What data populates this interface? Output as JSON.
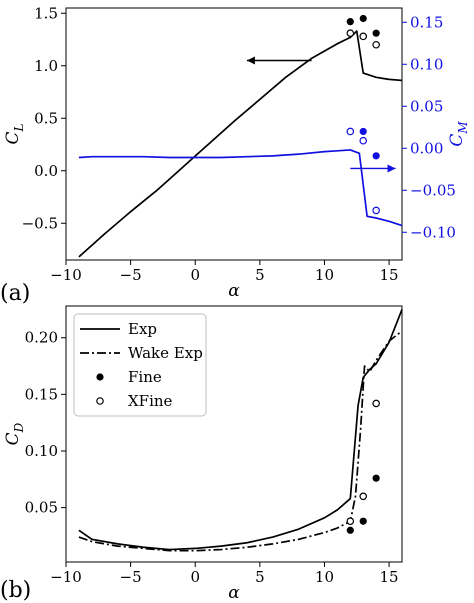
{
  "chart_data": [
    {
      "panel_label": "(a)",
      "type": "line",
      "xlabel": "α",
      "ylabel_left": "C_L",
      "ylabel_right": "C_M",
      "xlim": [
        -10,
        16
      ],
      "ylim_left": [
        -0.85,
        1.55
      ],
      "ylim_right": [
        -0.133,
        0.167
      ],
      "xticks": [
        -10,
        -5,
        0,
        5,
        10,
        15
      ],
      "yticks_left": [
        -0.5,
        0.0,
        0.5,
        1.0,
        1.5
      ],
      "yticks_right": [
        -0.1,
        -0.05,
        0.0,
        0.05,
        0.1,
        0.15
      ],
      "xtick_labels": [
        "−10",
        "−5",
        "0",
        "5",
        "10",
        "15"
      ],
      "ytick_labels_left": [
        "−0.5",
        "0.0",
        "0.5",
        "1.0",
        "1.5"
      ],
      "ytick_labels_right": [
        "−0.10",
        "−0.05",
        "0.00",
        "0.05",
        "0.10",
        "0.15"
      ],
      "colors": {
        "left_axis": "#000000",
        "right_axis": "#1010e0"
      },
      "series": [
        {
          "id": "cl_exp",
          "axis": "left",
          "style": "solid",
          "color": "#000000",
          "x": [
            -9,
            -7,
            -5,
            -3,
            -1,
            0,
            1,
            3,
            5,
            7,
            9,
            11,
            12,
            12.5,
            13,
            14,
            15,
            16
          ],
          "y": [
            -0.82,
            -0.6,
            -0.39,
            -0.19,
            0.03,
            0.14,
            0.25,
            0.47,
            0.68,
            0.89,
            1.07,
            1.21,
            1.27,
            1.33,
            0.93,
            0.89,
            0.87,
            0.86
          ]
        },
        {
          "id": "cm_exp",
          "axis": "right",
          "style": "solid",
          "color": "#1010e0",
          "x": [
            -9,
            -8,
            -6,
            -4,
            -2,
            0,
            2,
            4,
            6,
            8,
            10,
            11,
            12,
            12.7,
            13.3,
            14,
            15,
            16
          ],
          "y": [
            -0.011,
            -0.01,
            -0.01,
            -0.01,
            -0.011,
            -0.011,
            -0.011,
            -0.01,
            -0.009,
            -0.007,
            -0.004,
            -0.003,
            -0.002,
            -0.006,
            -0.081,
            -0.083,
            -0.087,
            -0.092
          ]
        },
        {
          "id": "cl_fine",
          "axis": "left",
          "marker": "filled",
          "color": "#000000",
          "x": [
            12,
            13,
            14
          ],
          "y": [
            1.42,
            1.45,
            1.31
          ]
        },
        {
          "id": "cl_xfine",
          "axis": "left",
          "marker": "open",
          "color": "#000000",
          "x": [
            12,
            13,
            14
          ],
          "y": [
            1.31,
            1.28,
            1.2
          ]
        },
        {
          "id": "cm_fine",
          "axis": "right",
          "marker": "filled",
          "color": "#1010e0",
          "x": [
            12,
            13,
            14
          ],
          "y": [
            0.02,
            0.02,
            -0.009
          ]
        },
        {
          "id": "cm_xfine",
          "axis": "right",
          "marker": "open",
          "color": "#1010e0",
          "x": [
            12,
            13,
            14
          ],
          "y": [
            0.02,
            0.009,
            -0.074
          ]
        }
      ],
      "annotations": [
        {
          "type": "arrow",
          "direction": "left",
          "axis": "left",
          "from": [
            9,
            1.05
          ],
          "to": [
            4,
            1.05
          ],
          "color": "#000000"
        },
        {
          "type": "arrow",
          "direction": "right",
          "axis": "right",
          "from": [
            12,
            -0.024
          ],
          "to": [
            15.5,
            -0.024
          ],
          "color": "#1010e0"
        }
      ]
    },
    {
      "panel_label": "(b)",
      "type": "line",
      "xlabel": "α",
      "ylabel": "C_D",
      "xlim": [
        -10,
        16
      ],
      "ylim": [
        0.002,
        0.228
      ],
      "xticks": [
        -10,
        -5,
        0,
        5,
        10,
        15
      ],
      "yticks": [
        0.05,
        0.1,
        0.15,
        0.2
      ],
      "xtick_labels": [
        "−10",
        "−5",
        "0",
        "5",
        "10",
        "15"
      ],
      "ytick_labels": [
        "0.05",
        "0.10",
        "0.15",
        "0.20"
      ],
      "legend": {
        "placement": "top-left",
        "entries": [
          {
            "label": "Exp",
            "style": "solid"
          },
          {
            "label": "Wake Exp",
            "style": "dashdot"
          },
          {
            "label": "Fine",
            "style": "filled-marker"
          },
          {
            "label": "XFine",
            "style": "open-marker"
          }
        ]
      },
      "series": [
        {
          "id": "cd_exp",
          "name": "Exp",
          "style": "solid",
          "color": "#000000",
          "x": [
            -9,
            -8,
            -6,
            -4,
            -2,
            0,
            2,
            4,
            6,
            8,
            10,
            11,
            12,
            12.6,
            13,
            13.5,
            14,
            15,
            16
          ],
          "y": [
            0.03,
            0.022,
            0.018,
            0.015,
            0.013,
            0.014,
            0.016,
            0.019,
            0.024,
            0.031,
            0.041,
            0.048,
            0.058,
            0.14,
            0.165,
            0.172,
            0.177,
            0.196,
            0.225
          ]
        },
        {
          "id": "cd_wake",
          "name": "Wake Exp",
          "style": "dashdot",
          "color": "#000000",
          "x": [
            -9,
            -8,
            -6,
            -4,
            -2,
            0,
            2,
            4,
            6,
            8,
            10,
            11,
            12,
            12.4,
            12.8,
            13.1,
            13.5,
            14,
            15,
            16
          ],
          "y": [
            0.024,
            0.02,
            0.016,
            0.014,
            0.012,
            0.012,
            0.013,
            0.015,
            0.018,
            0.022,
            0.028,
            0.032,
            0.038,
            0.06,
            0.12,
            0.175,
            0.17,
            0.18,
            0.197,
            0.206
          ]
        },
        {
          "id": "cd_fine",
          "name": "Fine",
          "marker": "filled",
          "color": "#000000",
          "x": [
            12,
            13,
            14
          ],
          "y": [
            0.03,
            0.038,
            0.076
          ]
        },
        {
          "id": "cd_xfine",
          "name": "XFine",
          "marker": "open",
          "color": "#000000",
          "x": [
            12,
            13,
            14
          ],
          "y": [
            0.038,
            0.06,
            0.142
          ]
        }
      ]
    }
  ]
}
